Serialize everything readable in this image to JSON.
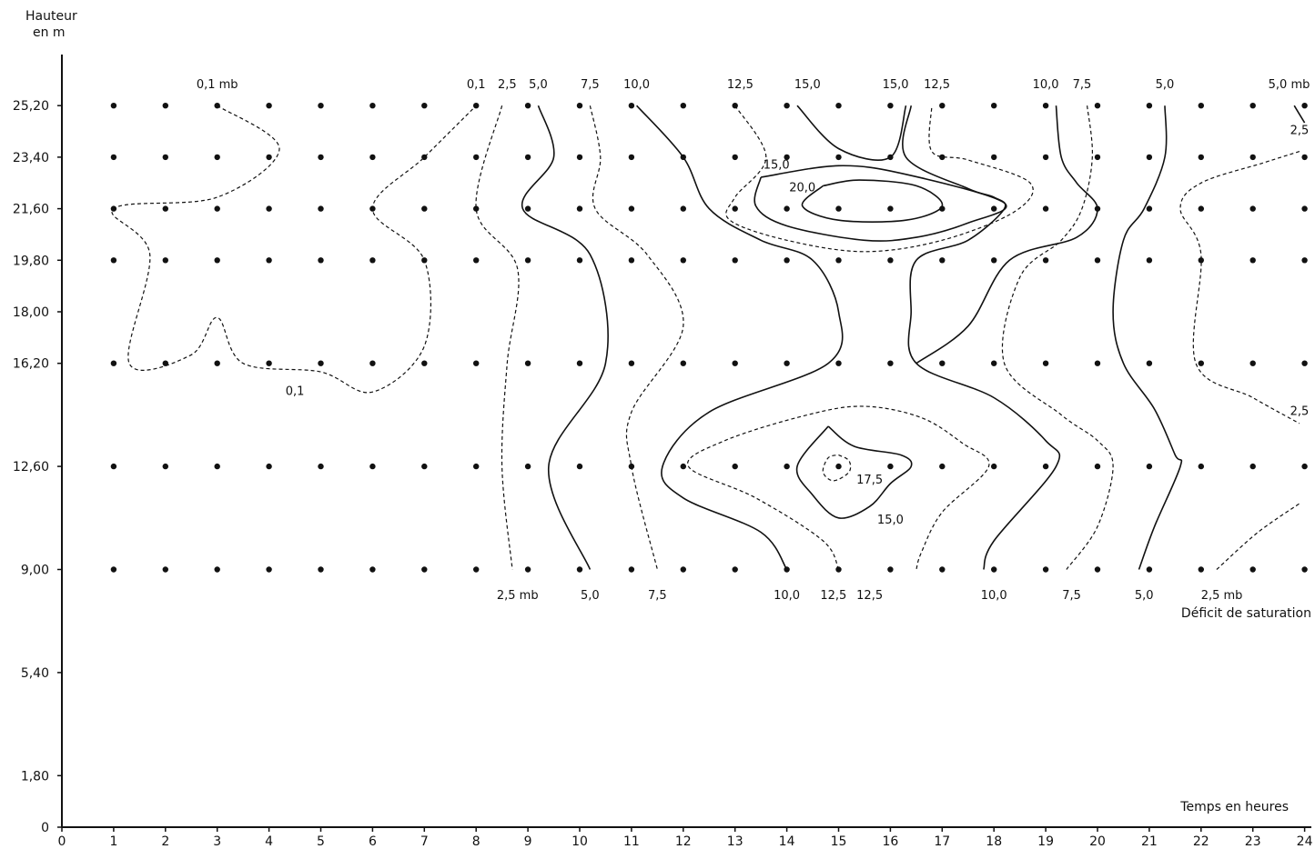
{
  "chart_data": {
    "type": "contour",
    "ylabel_line1": "Hauteur",
    "ylabel_line2": "en  m",
    "xlabel": "Temps en heures",
    "series_label": "Déficit de saturation",
    "xlim": [
      0,
      24
    ],
    "ylim": [
      0,
      28
    ],
    "x_ticks": [
      "0",
      "1",
      "2",
      "3",
      "4",
      "5",
      "6",
      "7",
      "8",
      "9",
      "10",
      "11",
      "12",
      "13",
      "14",
      "15",
      "16",
      "17",
      "18",
      "19",
      "20",
      "21",
      "22",
      "23",
      "24"
    ],
    "y_ticks": [
      {
        "value": 0,
        "label": "0"
      },
      {
        "value": 1.8,
        "label": "1,80"
      },
      {
        "value": 5.4,
        "label": "5,40"
      },
      {
        "value": 9.0,
        "label": "9,00"
      },
      {
        "value": 12.6,
        "label": "12,60"
      },
      {
        "value": 16.2,
        "label": "16,20"
      },
      {
        "value": 18.0,
        "label": "18,00"
      },
      {
        "value": 19.8,
        "label": "19,80"
      },
      {
        "value": 21.6,
        "label": "21,60"
      },
      {
        "value": 23.4,
        "label": "23,40"
      },
      {
        "value": 25.2,
        "label": "25,20"
      }
    ],
    "measurement_heights": [
      9.0,
      12.6,
      16.2,
      19.8,
      21.6,
      23.4,
      25.2
    ],
    "measurement_hours": [
      1,
      2,
      3,
      4,
      5,
      6,
      7,
      8,
      9,
      10,
      11,
      12,
      13,
      14,
      15,
      16,
      17,
      18,
      19,
      20,
      21,
      22,
      23,
      24
    ],
    "contours": [
      {
        "level": "0,1",
        "style": "dashed",
        "points": [
          [
            3,
            25.2
          ],
          [
            4.2,
            23.7
          ],
          [
            3,
            22
          ],
          [
            1,
            21.6
          ],
          [
            1.7,
            20
          ],
          [
            1.3,
            16.2
          ],
          [
            2.5,
            16.5
          ],
          [
            3,
            17.8
          ],
          [
            3.5,
            16.2
          ],
          [
            5,
            15.9
          ],
          [
            6,
            15.2
          ],
          [
            7,
            16.8
          ],
          [
            7,
            19.8
          ],
          [
            6,
            21.6
          ],
          [
            7,
            23.4
          ],
          [
            8,
            25.2
          ]
        ]
      },
      {
        "level": "2,5",
        "style": "dashed",
        "points": [
          [
            8.5,
            25.2
          ],
          [
            8,
            21.6
          ],
          [
            8.8,
            19.5
          ],
          [
            8.6,
            16.2
          ],
          [
            8.5,
            12.6
          ],
          [
            8.7,
            9.0
          ]
        ]
      },
      {
        "level": "5,0",
        "style": "solid",
        "points": [
          [
            9.2,
            25.2
          ],
          [
            9.5,
            23.4
          ],
          [
            8.9,
            21.6
          ],
          [
            10.2,
            20
          ],
          [
            10.5,
            16.2
          ],
          [
            9.4,
            12.6
          ],
          [
            10.2,
            9.0
          ]
        ]
      },
      {
        "level": "7,5",
        "style": "dashed",
        "points": [
          [
            10.2,
            25.2
          ],
          [
            10.4,
            23.4
          ],
          [
            10.3,
            21.6
          ],
          [
            11.3,
            20
          ],
          [
            12,
            17.5
          ],
          [
            11,
            14.5
          ],
          [
            11,
            12.6
          ],
          [
            11.5,
            9.0
          ]
        ]
      },
      {
        "level": "10,0",
        "style": "solid",
        "points": [
          [
            11.1,
            25.2
          ],
          [
            12,
            23.4
          ],
          [
            12.5,
            21.6
          ],
          [
            13.5,
            20.5
          ],
          [
            14.5,
            19.8
          ],
          [
            15,
            18
          ],
          [
            14.8,
            16.2
          ],
          [
            12.5,
            14.5
          ],
          [
            11.6,
            12.6
          ],
          [
            12,
            11.5
          ],
          [
            13.5,
            10.3
          ],
          [
            14,
            9.0
          ]
        ]
      },
      {
        "level": "12,5",
        "style": "dashed",
        "points": [
          [
            13,
            25.2
          ],
          [
            13.6,
            23.4
          ],
          [
            13,
            22
          ],
          [
            12.9,
            21.2
          ],
          [
            14,
            20.5
          ],
          [
            15.5,
            20.1
          ],
          [
            17,
            20.5
          ],
          [
            18.4,
            21.5
          ],
          [
            18.7,
            22.5
          ],
          [
            17.5,
            23.3
          ],
          [
            16.8,
            23.6
          ],
          [
            16.8,
            25.2
          ]
        ]
      },
      {
        "level": "15,0",
        "style": "solid",
        "points": [
          [
            14.2,
            25.2
          ],
          [
            15,
            23.7
          ],
          [
            16,
            23.4
          ],
          [
            16.3,
            25.2
          ]
        ]
      },
      {
        "level": "15,0",
        "style": "solid",
        "points": [
          [
            13.5,
            22.7
          ],
          [
            15,
            23.1
          ],
          [
            16.3,
            22.8
          ],
          [
            18.2,
            21.8
          ],
          [
            17.5,
            21.1
          ],
          [
            16.5,
            20.6
          ],
          [
            15.5,
            20.5
          ],
          [
            14,
            21
          ],
          [
            13.4,
            21.7
          ],
          [
            13.5,
            22.7
          ]
        ]
      },
      {
        "level": "20,0",
        "style": "solid",
        "points": [
          [
            14.7,
            22.4
          ],
          [
            15.4,
            22.6
          ],
          [
            16.5,
            22.4
          ],
          [
            17,
            21.7
          ],
          [
            16.3,
            21.2
          ],
          [
            15,
            21.2
          ],
          [
            14.3,
            21.7
          ],
          [
            14.7,
            22.4
          ]
        ]
      },
      {
        "level": "12,5",
        "style": "dashed",
        "points": [
          [
            15,
            9.0
          ],
          [
            14.7,
            10
          ],
          [
            13.4,
            11.5
          ],
          [
            12.1,
            12.6
          ],
          [
            12.8,
            13.5
          ],
          [
            14.4,
            14.4
          ],
          [
            15.5,
            14.7
          ],
          [
            16.6,
            14.3
          ],
          [
            17.4,
            13.4
          ],
          [
            17.9,
            12.6
          ],
          [
            17,
            11
          ],
          [
            16.6,
            9.6
          ],
          [
            16.5,
            9.0
          ]
        ]
      },
      {
        "level": "15,0",
        "style": "solid",
        "points": [
          [
            14.8,
            14.0
          ],
          [
            15.3,
            13.3
          ],
          [
            16.2,
            13
          ],
          [
            16.4,
            12.6
          ],
          [
            16,
            12
          ],
          [
            15.6,
            11.2
          ],
          [
            15,
            10.8
          ],
          [
            14.5,
            11.6
          ],
          [
            14.2,
            12.6
          ],
          [
            14.8,
            14.0
          ]
        ]
      },
      {
        "level": "17,5",
        "style": "dashed",
        "points": [
          [
            15,
            13.0
          ],
          [
            15.2,
            12.8
          ],
          [
            15.2,
            12.4
          ],
          [
            14.9,
            12.1
          ],
          [
            14.7,
            12.4
          ],
          [
            14.8,
            12.9
          ],
          [
            15,
            13.0
          ]
        ]
      },
      {
        "level": "10,0",
        "style": "solid",
        "points": [
          [
            16.4,
            25.2
          ],
          [
            16.3,
            23.4
          ],
          [
            17.5,
            22.3
          ],
          [
            18,
            22
          ],
          [
            18.2,
            21.6
          ],
          [
            17.5,
            20.5
          ],
          [
            16.5,
            19.8
          ],
          [
            16.4,
            18
          ],
          [
            16.5,
            16.2
          ],
          [
            18,
            15
          ],
          [
            19,
            13.5
          ],
          [
            19.2,
            12.6
          ],
          [
            18,
            10
          ],
          [
            17.8,
            9.0
          ]
        ]
      },
      {
        "level": "10,0",
        "style": "solid",
        "points": [
          [
            19.2,
            25.2
          ],
          [
            19.3,
            23.4
          ],
          [
            19.6,
            22.5
          ],
          [
            20,
            21.6
          ],
          [
            19.6,
            20.6
          ],
          [
            18.3,
            19.8
          ],
          [
            17.5,
            17.5
          ],
          [
            16.5,
            16.2
          ]
        ]
      },
      {
        "level": "7,5",
        "style": "dashed",
        "points": [
          [
            19.8,
            25.2
          ],
          [
            19.9,
            23.4
          ],
          [
            19.7,
            21.6
          ],
          [
            19.3,
            20.5
          ],
          [
            18.5,
            19.2
          ],
          [
            18.2,
            16.2
          ],
          [
            19.3,
            14.4
          ],
          [
            20,
            13.5
          ],
          [
            20.3,
            12.6
          ],
          [
            20,
            10.5
          ],
          [
            19.4,
            9.0
          ]
        ]
      },
      {
        "level": "5,0",
        "style": "solid",
        "points": [
          [
            21.3,
            25.2
          ],
          [
            21.3,
            23.4
          ],
          [
            20.9,
            21.6
          ],
          [
            20.5,
            20.5
          ],
          [
            20.3,
            18
          ],
          [
            20.5,
            16.2
          ],
          [
            21.1,
            14.6
          ],
          [
            21.5,
            13
          ],
          [
            21.6,
            12.6
          ],
          [
            21.1,
            10.5
          ],
          [
            20.8,
            9.0
          ]
        ]
      },
      {
        "level": "2,5",
        "style": "dashed",
        "points": [
          [
            23.9,
            23.6
          ],
          [
            23.2,
            23.2
          ],
          [
            22,
            22.5
          ],
          [
            21.6,
            21.6
          ],
          [
            22,
            20
          ],
          [
            21.9,
            16.2
          ],
          [
            23,
            15
          ],
          [
            23.9,
            14.1
          ]
        ]
      },
      {
        "level": "2,5",
        "style": "dashed",
        "points": [
          [
            22.3,
            9.0
          ],
          [
            23.1,
            10.3
          ],
          [
            23.9,
            11.3
          ]
        ]
      },
      {
        "level": "5,0",
        "style": "solid",
        "points": [
          [
            23.8,
            25.2
          ],
          [
            24,
            24.6
          ]
        ]
      }
    ],
    "top_labels": [
      {
        "text": "0,1 mb",
        "x": 3
      },
      {
        "text": "0,1",
        "x": 8
      },
      {
        "text": "2,5",
        "x": 8.6
      },
      {
        "text": "5,0",
        "x": 9.2
      },
      {
        "text": "7,5",
        "x": 10.2
      },
      {
        "text": "10,0",
        "x": 11.1
      },
      {
        "text": "12,5",
        "x": 13.1
      },
      {
        "text": "15,0",
        "x": 14.4
      },
      {
        "text": "15,0",
        "x": 16.1
      },
      {
        "text": "12,5",
        "x": 16.9
      },
      {
        "text": "10,0",
        "x": 19
      },
      {
        "text": "7,5",
        "x": 19.7
      },
      {
        "text": "5,0",
        "x": 21.3
      },
      {
        "text": "5,0 mb",
        "x": 23.7
      }
    ],
    "bottom_labels": [
      {
        "text": "2,5 mb",
        "x": 8.8
      },
      {
        "text": "5,0",
        "x": 10.2
      },
      {
        "text": "7,5",
        "x": 11.5
      },
      {
        "text": "10,0",
        "x": 14
      },
      {
        "text": "12,5",
        "x": 14.9
      },
      {
        "text": "12,5",
        "x": 15.6
      },
      {
        "text": "10,0",
        "x": 18
      },
      {
        "text": "7,5",
        "x": 19.5
      },
      {
        "text": "5,0",
        "x": 20.9
      },
      {
        "text": "2,5 mb",
        "x": 22.4
      }
    ],
    "inner_labels": [
      {
        "text": "0,1",
        "x": 4.5,
        "y": 15.1
      },
      {
        "text": "15,0",
        "x": 13.8,
        "y": 23.0
      },
      {
        "text": "20,0",
        "x": 14.3,
        "y": 22.2
      },
      {
        "text": "17,5",
        "x": 15.6,
        "y": 12.0
      },
      {
        "text": "15,0",
        "x": 16,
        "y": 10.6
      },
      {
        "text": "2,5",
        "x": 23.9,
        "y": 24.2
      },
      {
        "text": "2,5",
        "x": 23.9,
        "y": 14.4
      }
    ]
  }
}
